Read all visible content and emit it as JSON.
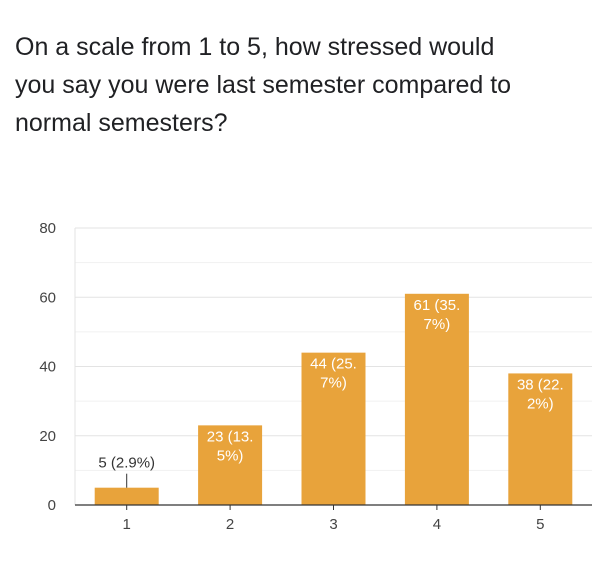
{
  "question": "On a scale from 1 to 5, how stressed would you say you were last semester compared to normal semesters?",
  "chart_data": {
    "type": "bar",
    "categories": [
      "1",
      "2",
      "3",
      "4",
      "5"
    ],
    "values": [
      5,
      23,
      44,
      61,
      38
    ],
    "data_labels": [
      [
        "5 (2.9%)"
      ],
      [
        "23 (13.",
        "5%)"
      ],
      [
        "44 (25.",
        "7%)"
      ],
      [
        "61 (35.",
        "7%)"
      ],
      [
        "38 (22.",
        "2%)"
      ]
    ],
    "ylim": [
      0,
      80
    ],
    "yticks": [
      "0",
      "20",
      "40",
      "60",
      "80"
    ],
    "grid": true,
    "legend": "none",
    "bar_color": "#e8a33b",
    "label_color_inside": "#ffffff",
    "label_color_outside": "#333333"
  }
}
